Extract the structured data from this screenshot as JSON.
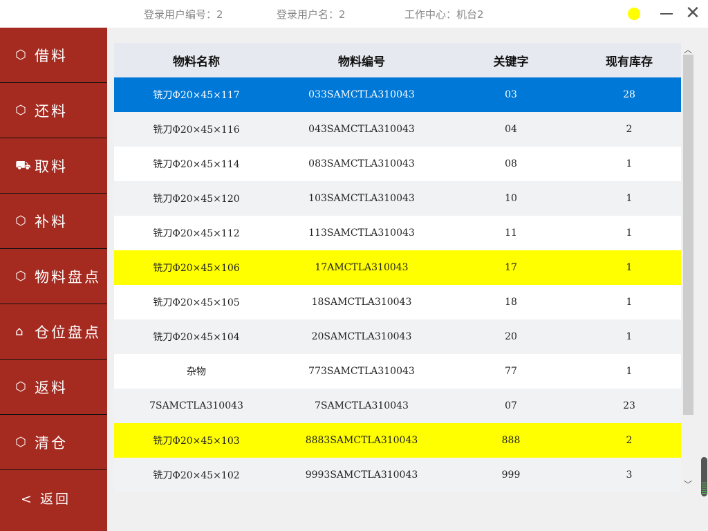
{
  "header": {
    "user_id": "登录用户编号：2",
    "user_name": "登录用户名：2",
    "work_center": "工作中心：机台2",
    "status_color": "#ffff00",
    "close": "✕"
  },
  "sidebar": {
    "items": [
      {
        "label": "借料",
        "icon": "box-out-icon"
      },
      {
        "label": "还料",
        "icon": "box-return-icon"
      },
      {
        "label": "取料",
        "icon": "truck-icon"
      },
      {
        "label": "补料",
        "icon": "box-plus-icon"
      },
      {
        "label": "物料盘点",
        "icon": "box-check-icon"
      },
      {
        "label": "仓位盘点",
        "icon": "warehouse-search-icon"
      },
      {
        "label": "返料",
        "icon": "box-back-icon"
      },
      {
        "label": "清仓",
        "icon": "box-clear-icon"
      }
    ],
    "back": "<  返回"
  },
  "table": {
    "columns": [
      "物料名称",
      "物料编号",
      "关键字",
      "现有库存"
    ],
    "rows": [
      [
        "铣刀Φ20×45×117",
        "033SAMCTLA310043",
        "03",
        "28"
      ],
      [
        "铣刀Φ20×45×116",
        "043SAMCTLA310043",
        "04",
        "2"
      ],
      [
        "铣刀Φ20×45×114",
        "083SAMCTLA310043",
        "08",
        "1"
      ],
      [
        "铣刀Φ20×45×120",
        "103SAMCTLA310043",
        "10",
        "1"
      ],
      [
        "铣刀Φ20×45×112",
        "113SAMCTLA310043",
        "11",
        "1"
      ],
      [
        "铣刀Φ20×45×106",
        "17AMCTLA310043",
        "17",
        "1"
      ],
      [
        "铣刀Φ20×45×105",
        "18SAMCTLA310043",
        "18",
        "1"
      ],
      [
        "铣刀Φ20×45×104",
        "20SAMCTLA310043",
        "20",
        "1"
      ],
      [
        "杂物",
        "773SAMCTLA310043",
        "77",
        "1"
      ],
      [
        "7SAMCTLA310043",
        "7SAMCTLA310043",
        "07",
        "23"
      ],
      [
        "铣刀Φ20×45×103",
        "8883SAMCTLA310043",
        "888",
        "2"
      ],
      [
        "铣刀Φ20×45×102",
        "9993SAMCTLA310043",
        "999",
        "3"
      ]
    ],
    "selected_row": 0,
    "highlighted_rows": [
      5,
      10
    ],
    "selected_color": "#0078d7",
    "highlight_color": "#ffff00"
  }
}
